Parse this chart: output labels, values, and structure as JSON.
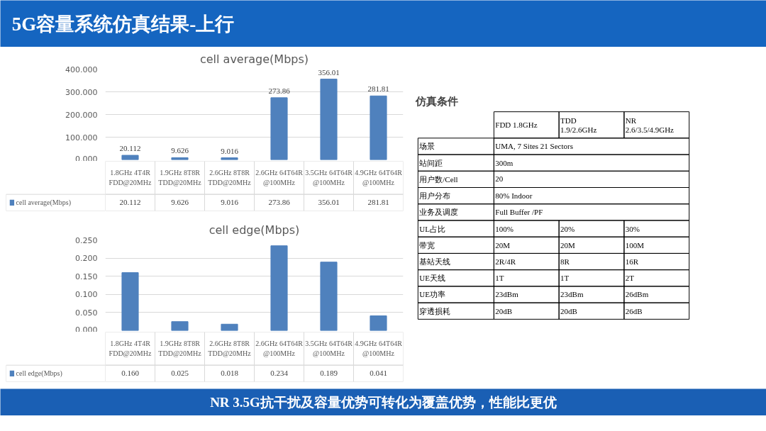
{
  "chart_data": [
    {
      "type": "other",
      "title": "5G容量系统仿真结果-上行",
      "annotations": [
        "NR 3.5G抗干扰及容量优势可转化为覆盖优势，性能比更优"
      ]
    },
    {
      "type": "bar",
      "title": "cell average(Mbps)",
      "categories": [
        "1.8GHz 4T4R FDD@20MHz",
        "1.9GHz 8T8R TDD@20MHz",
        "2.6GHz 8T8R TDD@20MHz",
        "2.6GHz 64T64R @100MHz",
        "3.5GHz 64T64R @100MHz",
        "4.9GHz 64T64R @100MHz"
      ],
      "series": [
        {
          "name": "cell average(Mbps)",
          "color": "#4f81bd",
          "values": [
            20.112,
            9.626,
            9.016,
            273.86,
            356.01,
            281.81
          ]
        }
      ],
      "ylim": [
        0,
        400
      ],
      "yticks": [
        {
          "value": 0,
          "label": "0.000"
        },
        {
          "value": 100,
          "label": "100.000"
        },
        {
          "value": 200,
          "label": "200.000"
        },
        {
          "value": 300,
          "label": "300.000"
        },
        {
          "value": 400,
          "label": "400.000"
        }
      ],
      "value_labels": [
        "20.112",
        "9.626",
        "9.016",
        "273.86",
        "356.01",
        "281.81"
      ],
      "grid": "y",
      "legend": "bottom",
      "data_labels": true
    },
    {
      "type": "bar",
      "title": "cell edge(Mbps)",
      "categories": [
        "1.8GHz 4T4R FDD@20MHz",
        "1.9GHz 8T8R TDD@20MHz",
        "2.6GHz 8T8R TDD@20MHz",
        "2.6GHz 64T64R @100MHz",
        "3.5GHz 64T64R @100MHz",
        "4.9GHz 64T64R @100MHz"
      ],
      "series": [
        {
          "name": "cell edge(Mbps)",
          "color": "#4f81bd",
          "values": [
            0.16,
            0.025,
            0.018,
            0.234,
            0.189,
            0.041
          ]
        }
      ],
      "value_labels": [
        "0.160",
        "0.025",
        "0.018",
        "0.234",
        "0.189",
        "0.041"
      ],
      "ylim": [
        0,
        0.25
      ],
      "yticks": [
        {
          "value": 0,
          "label": "0.000"
        },
        {
          "value": 0.05,
          "label": "0.050"
        },
        {
          "value": 0.1,
          "label": "0.100"
        },
        {
          "value": 0.15,
          "label": "0.150"
        },
        {
          "value": 0.2,
          "label": "0.200"
        },
        {
          "value": 0.25,
          "label": "0.250"
        }
      ],
      "grid": "y",
      "legend": "bottom"
    },
    {
      "type": "other",
      "title": "仿真条件",
      "categories": [
        "FDD 1.8GHz",
        "TDD 1.9/2.6GHz",
        "NR 2.6/3.5/4.9GHz"
      ],
      "y_categories": [
        "场景",
        "站间距",
        "用户数/Cell",
        "用户分布",
        "业务及调度",
        "UL占比",
        "带宽",
        "基站天线",
        "UE天线",
        "UE功率",
        "穿透损耗"
      ],
      "cell_labels": [
        [
          "UMA, 7 Sites 21 Sectors",
          null,
          null
        ],
        [
          "300m",
          null,
          null
        ],
        [
          "20",
          null,
          null
        ],
        [
          "80% Indoor",
          null,
          null
        ],
        [
          "Full Buffer /PF",
          null,
          null
        ],
        [
          "100%",
          "20%",
          "30%"
        ],
        [
          "20M",
          "20M",
          "100M"
        ],
        [
          "2R/4R",
          "8R",
          "16R"
        ],
        [
          "1T",
          "1T",
          "2T"
        ],
        [
          "23dBm",
          "23dBm",
          "26dBm"
        ],
        [
          "20dB",
          "20dB",
          "26dB"
        ]
      ]
    }
  ]
}
